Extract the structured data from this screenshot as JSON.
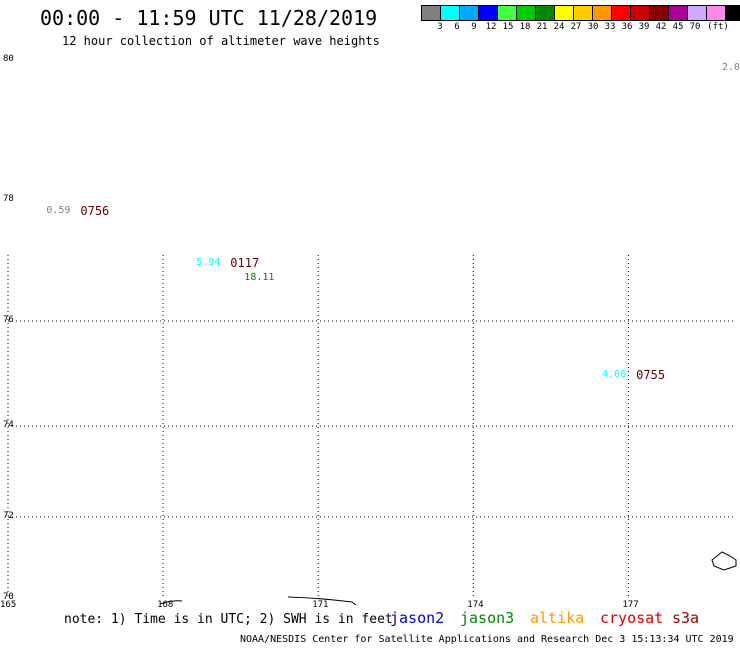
{
  "header": {
    "title": "00:00 - 11:59 UTC 11/28/2019",
    "subtitle": "12 hour collection of altimeter wave heights"
  },
  "color_scale": {
    "unit": "(ft)",
    "colors": [
      "#808080",
      "#00ffff",
      "#00aaff",
      "#0000ff",
      "#44ff44",
      "#00cc00",
      "#008800",
      "#ffff00",
      "#ffcc00",
      "#ff9900",
      "#ff0000",
      "#cc0000",
      "#880000",
      "#aa0099",
      "#ccaaff",
      "#ff88ee",
      "#000000"
    ],
    "labels": [
      "3",
      "6",
      "9",
      "12",
      "15",
      "18",
      "21",
      "24",
      "27",
      "30",
      "33",
      "36",
      "39",
      "42",
      "45",
      "70"
    ]
  },
  "map": {
    "lat_labels": [
      "80",
      "78",
      "76",
      "74",
      "72",
      "70"
    ],
    "lon_labels": [
      "165",
      "168",
      "171",
      "174",
      "177"
    ],
    "corner_value": "2.0",
    "observations": [
      {
        "lon": 166.4,
        "lat": 77.8,
        "value": "0.59",
        "value_color": "#808080",
        "time": "0756"
      },
      {
        "lon": 169.3,
        "lat": 76.95,
        "value": "5.94",
        "value_color": "#00ffff",
        "time": "0117",
        "value2": "18.11",
        "value2_color": "#008800"
      },
      {
        "lon": 177.15,
        "lat": 74.95,
        "value": "4.06",
        "value_color": "#00ffff",
        "time": "0755"
      }
    ]
  },
  "legend": {
    "note": "note: 1) Time is in UTC; 2) SWH is in feet",
    "satellites": [
      {
        "name": "jason2",
        "color": "#0000cc"
      },
      {
        "name": "jason3",
        "color": "#008800"
      },
      {
        "name": "altika",
        "color": "#ff9900"
      },
      {
        "name": "cryosat",
        "color": "#dd0000"
      },
      {
        "name": "s3a",
        "color": "#990000"
      }
    ]
  },
  "footer": "NOAA/NESDIS Center for Satellite Applications and Research   Dec  3 15:13:34 UTC 2019"
}
